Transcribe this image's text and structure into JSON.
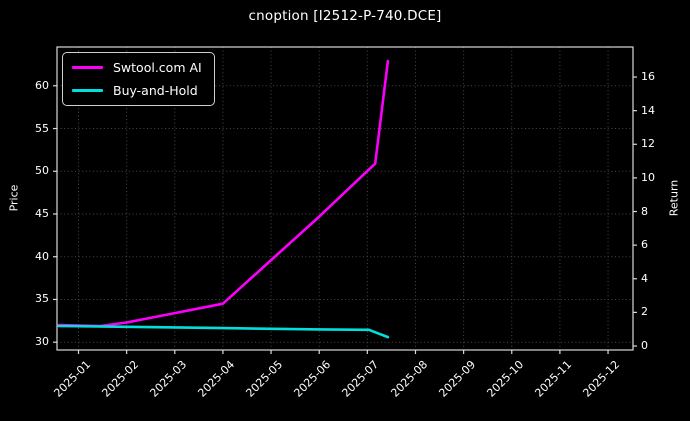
{
  "window": {
    "title": "cnoption [I2512-P-740.DCE]"
  },
  "chart_data": {
    "type": "line",
    "title": "cnoption [I2512-P-740.DCE]",
    "theme": {
      "background": "#000000",
      "text_color": "#ffffff",
      "grid_color": "#4a4a4a",
      "grid_style": "dotted",
      "spine_color": "#d9d9d9",
      "grid": true
    },
    "legend": {
      "position": "upper-left",
      "entries": [
        "Swtool.com AI",
        "Buy-and-Hold"
      ]
    },
    "x_axis": {
      "tick_labels": [
        "2025-01",
        "2025-02",
        "2025-03",
        "2025-04",
        "2025-05",
        "2025-06",
        "2025-07",
        "2025-08",
        "2025-09",
        "2025-10",
        "2025-11",
        "2025-12"
      ],
      "tick_rotation_deg": 45,
      "range": [
        "2024-12-18",
        "2025-12-16"
      ]
    },
    "left_axis": {
      "label": "Price",
      "ticks": [
        30,
        35,
        40,
        45,
        50,
        55,
        60
      ],
      "range": [
        29.1,
        64.5
      ]
    },
    "right_axis": {
      "label": "Return",
      "ticks": [
        0,
        2,
        4,
        6,
        8,
        10,
        12,
        14,
        16
      ],
      "range": [
        -0.2,
        17.8
      ]
    },
    "series": [
      {
        "name": "Swtool.com AI",
        "color": "#fa00fa",
        "axis": "left",
        "points": [
          [
            "2024-12-19",
            32.0
          ],
          [
            "2025-01-15",
            31.9
          ],
          [
            "2025-02-01",
            32.3
          ],
          [
            "2025-03-01",
            33.4
          ],
          [
            "2025-04-01",
            34.5
          ],
          [
            "2025-05-01",
            39.6
          ],
          [
            "2025-06-01",
            44.7
          ],
          [
            "2025-07-06",
            50.9
          ],
          [
            "2025-07-14",
            62.9
          ]
        ]
      },
      {
        "name": "Buy-and-Hold",
        "color": "#00dede",
        "axis": "left",
        "points": [
          [
            "2024-12-19",
            31.9
          ],
          [
            "2025-02-01",
            31.8
          ],
          [
            "2025-04-01",
            31.65
          ],
          [
            "2025-06-01",
            31.5
          ],
          [
            "2025-07-02",
            31.45
          ],
          [
            "2025-07-14",
            30.6
          ]
        ]
      }
    ]
  }
}
